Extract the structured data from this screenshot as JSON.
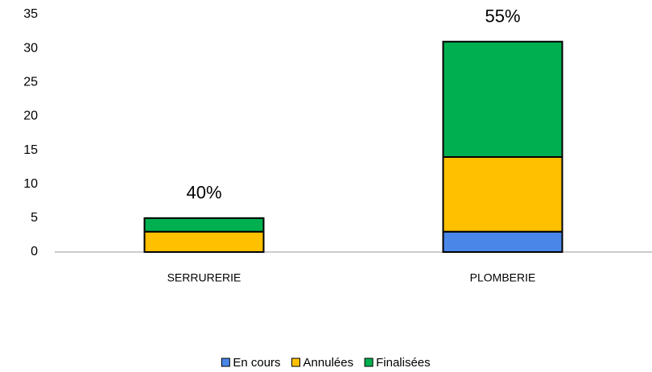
{
  "chart_data": {
    "type": "bar",
    "stacked": true,
    "categories": [
      "SERRURERIE",
      "PLOMBERIE"
    ],
    "annotations": [
      "40%",
      "55%"
    ],
    "series": [
      {
        "name": "En cours",
        "color": "#4a86e8",
        "values": [
          0,
          3
        ]
      },
      {
        "name": "Annulées",
        "color": "#ffc000",
        "values": [
          3,
          11
        ]
      },
      {
        "name": "Finalisées",
        "color": "#00b050",
        "values": [
          2,
          17
        ]
      }
    ],
    "ylim": [
      0,
      35
    ],
    "yticks": [
      0,
      5,
      10,
      15,
      20,
      25,
      30,
      35
    ],
    "grid": false,
    "legend": "bottom"
  }
}
